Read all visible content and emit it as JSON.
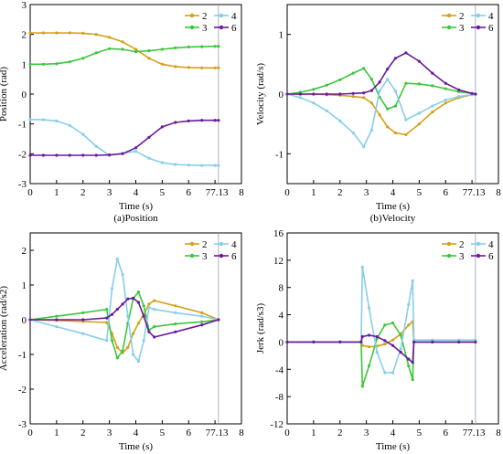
{
  "figure": {
    "colors": {
      "2": "#D4A017",
      "3": "#3BC73B",
      "4": "#87CEEB",
      "6": "#6A1B9A",
      "marker_vline": "#8FA0B8"
    }
  },
  "chart_data": [
    {
      "type": "line",
      "caption": "(a)Position",
      "xlabel": "Time (s)",
      "ylabel": "Position (rad)",
      "xlim": [
        0,
        8
      ],
      "ylim": [
        -3,
        3
      ],
      "xticks": [
        "0",
        "1",
        "2",
        "3",
        "4",
        "5",
        "6",
        "77.13",
        "8"
      ],
      "xtick_values": [
        0,
        1,
        2,
        3,
        4,
        5,
        6,
        7,
        8
      ],
      "yticks": [
        -3,
        -2,
        -1,
        0,
        1,
        2,
        3
      ],
      "vline": 7.13,
      "legend": "top-right",
      "x": [
        0,
        0.5,
        1,
        1.5,
        2,
        2.5,
        3,
        3.5,
        4,
        4.5,
        5,
        5.5,
        6,
        6.5,
        7,
        7.13
      ],
      "series": [
        {
          "name": "2",
          "values": [
            2.05,
            2.05,
            2.05,
            2.05,
            2.04,
            2.0,
            1.9,
            1.75,
            1.5,
            1.2,
            1.0,
            0.92,
            0.89,
            0.88,
            0.88,
            0.88
          ]
        },
        {
          "name": "3",
          "values": [
            1.0,
            1.0,
            1.02,
            1.08,
            1.2,
            1.38,
            1.52,
            1.5,
            1.42,
            1.45,
            1.5,
            1.55,
            1.58,
            1.59,
            1.6,
            1.6
          ]
        },
        {
          "name": "4",
          "values": [
            -0.85,
            -0.86,
            -0.9,
            -1.05,
            -1.35,
            -1.75,
            -2.05,
            -1.98,
            -1.92,
            -2.15,
            -2.3,
            -2.36,
            -2.38,
            -2.39,
            -2.39,
            -2.39
          ]
        },
        {
          "name": "6",
          "values": [
            -2.05,
            -2.05,
            -2.05,
            -2.05,
            -2.05,
            -2.05,
            -2.04,
            -2.0,
            -1.8,
            -1.45,
            -1.1,
            -0.95,
            -0.9,
            -0.88,
            -0.88,
            -0.88
          ]
        }
      ]
    },
    {
      "type": "line",
      "caption": "(b)Velocity",
      "xlabel": "Time (s)",
      "ylabel": "Velocity (rad/s)",
      "xlim": [
        0,
        8
      ],
      "ylim": [
        -1.5,
        1.5
      ],
      "xticks": [
        "0",
        "1",
        "2",
        "3",
        "4",
        "5",
        "6",
        "77.13",
        "8"
      ],
      "xtick_values": [
        0,
        1,
        2,
        3,
        4,
        5,
        6,
        7,
        8
      ],
      "yticks": [
        -1,
        0,
        1
      ],
      "vline": 7.13,
      "legend": "top-right",
      "x": [
        0,
        0.5,
        1,
        1.5,
        2,
        2.5,
        2.9,
        3.2,
        3.5,
        3.8,
        4.1,
        4.5,
        5,
        5.5,
        6,
        6.5,
        7,
        7.13
      ],
      "series": [
        {
          "name": "2",
          "values": [
            0,
            0,
            0,
            -0.01,
            -0.02,
            -0.04,
            -0.06,
            -0.15,
            -0.35,
            -0.55,
            -0.65,
            -0.68,
            -0.5,
            -0.3,
            -0.15,
            -0.06,
            -0.01,
            0
          ]
        },
        {
          "name": "3",
          "values": [
            0,
            0.03,
            0.08,
            0.15,
            0.24,
            0.35,
            0.43,
            0.25,
            -0.05,
            -0.25,
            -0.2,
            0.18,
            0.17,
            0.14,
            0.09,
            0.04,
            0.01,
            0
          ]
        },
        {
          "name": "4",
          "values": [
            0,
            -0.06,
            -0.15,
            -0.28,
            -0.45,
            -0.65,
            -0.88,
            -0.6,
            0.05,
            0.25,
            0.05,
            -0.43,
            -0.32,
            -0.2,
            -0.1,
            -0.04,
            -0.01,
            0
          ]
        },
        {
          "name": "6",
          "values": [
            0,
            0,
            0,
            0,
            0,
            0.01,
            0.02,
            0.06,
            0.2,
            0.42,
            0.6,
            0.69,
            0.55,
            0.35,
            0.18,
            0.07,
            0.01,
            0
          ]
        }
      ]
    },
    {
      "type": "line",
      "caption": "(c)Acceleration",
      "xlabel": "Time (s)",
      "ylabel": "Acceleration (rad/s2)",
      "xlim": [
        0,
        8
      ],
      "ylim": [
        -3,
        2.5
      ],
      "xticks": [
        "0",
        "1",
        "2",
        "3",
        "4",
        "5",
        "6",
        "77.13",
        "8"
      ],
      "xtick_values": [
        0,
        1,
        2,
        3,
        4,
        5,
        6,
        7,
        8
      ],
      "yticks": [
        -3,
        -2,
        -1,
        0,
        1,
        2
      ],
      "vline": 7.13,
      "legend": "top-right",
      "x": [
        0,
        1,
        2,
        2.9,
        3.1,
        3.3,
        3.5,
        3.7,
        3.9,
        4.1,
        4.3,
        4.5,
        4.7,
        5.5,
        6.5,
        7.13
      ],
      "series": [
        {
          "name": "2",
          "values": [
            0,
            -0.02,
            -0.05,
            -0.08,
            -0.4,
            -0.8,
            -0.95,
            -0.8,
            -0.4,
            -0.1,
            0.15,
            0.45,
            0.55,
            0.4,
            0.2,
            0
          ]
        },
        {
          "name": "3",
          "values": [
            0,
            0.1,
            0.2,
            0.3,
            -0.6,
            -1.1,
            -0.9,
            -0.1,
            0.6,
            0.8,
            0.4,
            -0.3,
            -0.2,
            -0.12,
            -0.06,
            0
          ]
        },
        {
          "name": "4",
          "values": [
            0,
            -0.2,
            -0.4,
            -0.6,
            0.9,
            1.75,
            1.3,
            0.1,
            -1.0,
            -1.2,
            -0.6,
            0.35,
            0.3,
            0.2,
            0.1,
            0
          ]
        },
        {
          "name": "6",
          "values": [
            0,
            0,
            0,
            0.05,
            0.15,
            0.3,
            0.45,
            0.6,
            0.62,
            0.5,
            0.1,
            -0.35,
            -0.5,
            -0.35,
            -0.15,
            0
          ]
        }
      ]
    },
    {
      "type": "line",
      "caption": "(d)Jerk",
      "xlabel": "Time (s)",
      "ylabel": "Jerk (rad/s3)",
      "xlim": [
        0,
        8
      ],
      "ylim": [
        -12,
        16
      ],
      "xticks": [
        "0",
        "1",
        "2",
        "3",
        "4",
        "5",
        "6",
        "77.13",
        "8"
      ],
      "xtick_values": [
        0,
        1,
        2,
        3,
        4,
        5,
        6,
        7,
        8
      ],
      "yticks": [
        -12,
        -8,
        -4,
        0,
        4,
        8,
        12,
        16
      ],
      "vline": 7.13,
      "legend": "top-right",
      "x": [
        0,
        1,
        2,
        2.8,
        2.85,
        3.1,
        3.4,
        3.7,
        4.0,
        4.3,
        4.6,
        4.75,
        4.8,
        5.5,
        6.5,
        7.13
      ],
      "series": [
        {
          "name": "2",
          "values": [
            0,
            0,
            0,
            0,
            -0.5,
            -0.7,
            -0.6,
            -0.3,
            0.3,
            1.2,
            2.5,
            3.0,
            0,
            0,
            0,
            0
          ]
        },
        {
          "name": "3",
          "values": [
            0,
            0,
            0,
            0,
            -6.5,
            -3.5,
            0.5,
            2.5,
            2.8,
            1.0,
            -3.5,
            -5.5,
            0,
            0,
            0,
            0
          ]
        },
        {
          "name": "4",
          "values": [
            0,
            0,
            0,
            0,
            11.0,
            5.0,
            -1.5,
            -4.5,
            -4.5,
            -1.0,
            5.5,
            9.0,
            0.3,
            0.3,
            0.3,
            0.3
          ]
        },
        {
          "name": "6",
          "values": [
            0,
            0,
            0,
            0,
            0.8,
            1.0,
            0.8,
            0.2,
            -0.5,
            -1.5,
            -2.5,
            -3.0,
            0,
            0,
            0,
            0
          ]
        }
      ]
    }
  ]
}
